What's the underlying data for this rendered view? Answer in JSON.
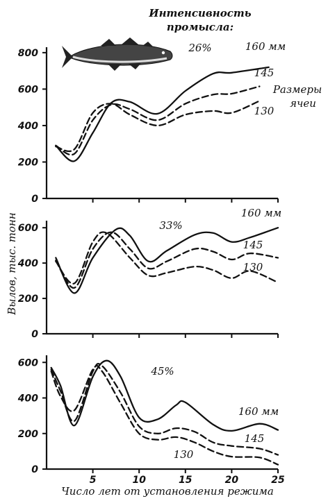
{
  "header": {
    "line1": "Интенсивность",
    "line2": "промысла:"
  },
  "ylabel": "Вылов, тыс. тонн",
  "xlabel": "Число лет от установления режима",
  "mesh_label": [
    "Размеры",
    "ячеи"
  ],
  "icons": [
    "fish-icon"
  ],
  "chart_data": [
    {
      "type": "line",
      "panel": "top",
      "intensity": "26%",
      "x_ticks": [
        "5",
        "10",
        "15",
        "20",
        "25"
      ],
      "y_ticks": [
        "0",
        "200",
        "400",
        "600",
        "800"
      ],
      "xlim": [
        0,
        25
      ],
      "ylim": [
        0,
        830
      ],
      "series": [
        {
          "name": "160 мм",
          "style": "solid",
          "points": [
            [
              1,
              290
            ],
            [
              3,
              205
            ],
            [
              5,
              360
            ],
            [
              7,
              525
            ],
            [
              9,
              530
            ],
            [
              12,
              465
            ],
            [
              15,
              590
            ],
            [
              18,
              685
            ],
            [
              20,
              690
            ],
            [
              24,
              720
            ]
          ]
        },
        {
          "name": "145",
          "style": "dashed",
          "points": [
            [
              1,
              290
            ],
            [
              3,
              245
            ],
            [
              5,
              430
            ],
            [
              7,
              515
            ],
            [
              9,
              490
            ],
            [
              12,
              430
            ],
            [
              15,
              520
            ],
            [
              18,
              570
            ],
            [
              20,
              575
            ],
            [
              23,
              615
            ]
          ]
        },
        {
          "name": "130",
          "style": "dashed",
          "points": [
            [
              1,
              285
            ],
            [
              3,
              270
            ],
            [
              5,
              470
            ],
            [
              7,
              520
            ],
            [
              9,
              460
            ],
            [
              12,
              400
            ],
            [
              15,
              460
            ],
            [
              18,
              480
            ],
            [
              20,
              470
            ],
            [
              23,
              535
            ]
          ]
        }
      ]
    },
    {
      "type": "line",
      "panel": "middle",
      "intensity": "33%",
      "x_ticks": [
        "5",
        "10",
        "15",
        "20",
        "25"
      ],
      "y_ticks": [
        "0",
        "200",
        "400",
        "600"
      ],
      "xlim": [
        0,
        25
      ],
      "ylim": [
        0,
        640
      ],
      "series": [
        {
          "name": "160 мм",
          "style": "solid",
          "points": [
            [
              1,
              430
            ],
            [
              3,
              230
            ],
            [
              5,
              430
            ],
            [
              7.5,
              590
            ],
            [
              9,
              555
            ],
            [
              11,
              410
            ],
            [
              13,
              470
            ],
            [
              16,
              560
            ],
            [
              18,
              570
            ],
            [
              20,
              520
            ],
            [
              22,
              545
            ],
            [
              25,
              600
            ]
          ]
        },
        {
          "name": "145",
          "style": "dashed",
          "points": [
            [
              1,
              415
            ],
            [
              3,
              260
            ],
            [
              5,
              480
            ],
            [
              7,
              575
            ],
            [
              9,
              480
            ],
            [
              11,
              370
            ],
            [
              13,
              410
            ],
            [
              16,
              480
            ],
            [
              18,
              465
            ],
            [
              20,
              420
            ],
            [
              22,
              455
            ],
            [
              25,
              430
            ]
          ]
        },
        {
          "name": "130",
          "style": "dashed",
          "points": [
            [
              1,
              410
            ],
            [
              3,
              285
            ],
            [
              5,
              520
            ],
            [
              6.5,
              570
            ],
            [
              9,
              430
            ],
            [
              11,
              330
            ],
            [
              13,
              345
            ],
            [
              16,
              380
            ],
            [
              18,
              360
            ],
            [
              20,
              315
            ],
            [
              22,
              355
            ],
            [
              25,
              290
            ]
          ]
        }
      ]
    },
    {
      "type": "line",
      "panel": "bottom",
      "intensity": "45%",
      "x_ticks": [
        "5",
        "10",
        "15",
        "20",
        "25"
      ],
      "y_ticks": [
        "0",
        "200",
        "400",
        "600"
      ],
      "xlim": [
        0,
        25
      ],
      "ylim": [
        0,
        640
      ],
      "series": [
        {
          "name": "160 мм",
          "style": "solid",
          "points": [
            [
              0.5,
              570
            ],
            [
              1.5,
              470
            ],
            [
              3,
              245
            ],
            [
              5,
              520
            ],
            [
              6.5,
              610
            ],
            [
              8,
              520
            ],
            [
              10,
              290
            ],
            [
              12,
              280
            ],
            [
              14,
              360
            ],
            [
              15,
              375
            ],
            [
              18,
              250
            ],
            [
              20,
              215
            ],
            [
              23,
              255
            ],
            [
              25,
              220
            ]
          ]
        },
        {
          "name": "145",
          "style": "dashed",
          "points": [
            [
              0.5,
              560
            ],
            [
              1.5,
              440
            ],
            [
              3,
              270
            ],
            [
              5,
              550
            ],
            [
              6,
              580
            ],
            [
              8,
              430
            ],
            [
              10,
              240
            ],
            [
              12,
              200
            ],
            [
              14,
              230
            ],
            [
              16,
              210
            ],
            [
              18,
              150
            ],
            [
              20,
              130
            ],
            [
              23,
              115
            ],
            [
              25,
              80
            ]
          ]
        },
        {
          "name": "130",
          "style": "dashed",
          "points": [
            [
              0.5,
              550
            ],
            [
              1.5,
              410
            ],
            [
              3,
              330
            ],
            [
              5,
              560
            ],
            [
              6,
              550
            ],
            [
              8,
              370
            ],
            [
              10,
              200
            ],
            [
              12,
              165
            ],
            [
              14,
              180
            ],
            [
              16,
              150
            ],
            [
              18,
              100
            ],
            [
              20,
              70
            ],
            [
              23,
              65
            ],
            [
              25,
              25
            ]
          ]
        }
      ]
    }
  ]
}
